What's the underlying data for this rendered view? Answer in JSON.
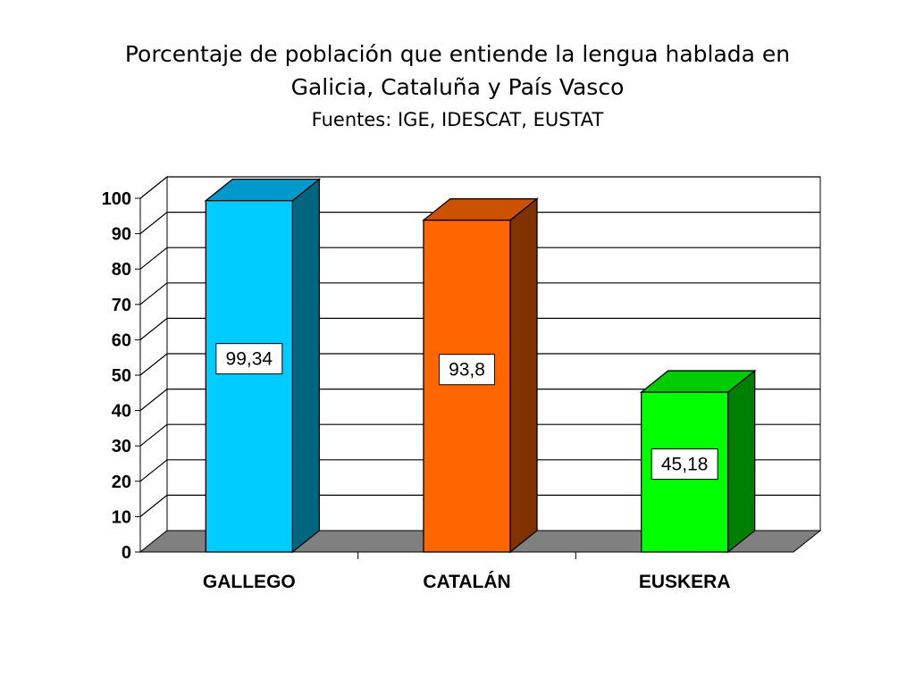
{
  "title": {
    "line1": "Porcentaje de población que entiende la lengua hablada en",
    "line2": "Galicia, Cataluña y País Vasco",
    "subtitle": "Fuentes: IGE, IDESCAT, EUSTAT"
  },
  "chart_data": {
    "type": "bar",
    "style": "3d-column",
    "categories": [
      "GALLEGO",
      "CATALÁN",
      "EUSKERA"
    ],
    "values": [
      99.34,
      93.8,
      45.18
    ],
    "value_labels": [
      "99,34",
      "93,8",
      "45,18"
    ],
    "colors": [
      {
        "front": "#00ccff",
        "side": "#006680",
        "top": "#0099cc"
      },
      {
        "front": "#ff6600",
        "side": "#803300",
        "top": "#cc5200"
      },
      {
        "front": "#00ff00",
        "side": "#008000",
        "top": "#00cc00"
      }
    ],
    "floor_color": "#808080",
    "ylim": [
      0,
      100
    ],
    "yticks": [
      "0",
      "10",
      "20",
      "30",
      "40",
      "50",
      "60",
      "70",
      "80",
      "90",
      "100"
    ],
    "grid": true,
    "legend": "none"
  }
}
